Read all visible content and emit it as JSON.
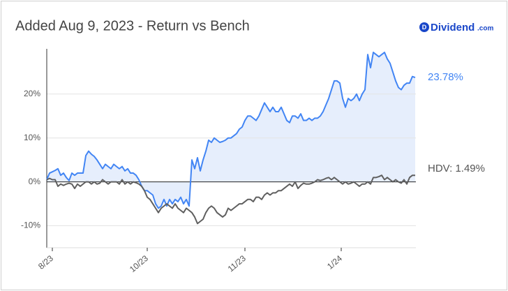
{
  "chart_data": {
    "type": "line",
    "title": "Added Aug 9, 2023 - Return vs Bench",
    "logo_name": "Dividend",
    "logo_suffix": ".com",
    "xlim": [
      0,
      132
    ],
    "xticks": [
      {
        "value": 2,
        "label": "8/23"
      },
      {
        "value": 36,
        "label": "10/23"
      },
      {
        "value": 71,
        "label": "11/23"
      },
      {
        "value": 105.5,
        "label": "1/24"
      }
    ],
    "ylim": [
      -15,
      30.3
    ],
    "yticks": [
      {
        "value": -10,
        "label": "-10%"
      },
      {
        "value": 0,
        "label": "0%"
      },
      {
        "value": 10,
        "label": "10%"
      },
      {
        "value": 20,
        "label": "20%"
      }
    ],
    "grid": true,
    "x": [
      0,
      1,
      2,
      3,
      4,
      5,
      6,
      7,
      8,
      9,
      10,
      11,
      12,
      13,
      14,
      15,
      16,
      17,
      18,
      19,
      20,
      21,
      22,
      23,
      24,
      25,
      26,
      27,
      28,
      29,
      30,
      31,
      32,
      33,
      34,
      35,
      36,
      37,
      38,
      39,
      40,
      41,
      42,
      43,
      44,
      45,
      46,
      47,
      48,
      49,
      50,
      51,
      52,
      53,
      54,
      55,
      56,
      57,
      58,
      59,
      60,
      61,
      62,
      63,
      64,
      65,
      66,
      67,
      68,
      69,
      70,
      71,
      72,
      73,
      74,
      75,
      76,
      77,
      78,
      79,
      80,
      81,
      82,
      83,
      84,
      85,
      86,
      87,
      88,
      89,
      90,
      91,
      92,
      93,
      94,
      95,
      96,
      97,
      98,
      99,
      100,
      101,
      102,
      103,
      104,
      105,
      106,
      107,
      108,
      109,
      110,
      111,
      112,
      113,
      114,
      115,
      116,
      117,
      118,
      119,
      120,
      121,
      122,
      123,
      124,
      125,
      126,
      127,
      128,
      129,
      130,
      131,
      132
    ],
    "series": [
      {
        "label": "23.78%",
        "color": "#4285f4",
        "fill": "#e6eefc",
        "values": [
          0.5,
          2,
          2.3,
          2.6,
          3,
          1.5,
          2,
          1,
          0.3,
          2,
          1.5,
          2,
          2,
          2,
          6,
          7,
          6.3,
          5.8,
          5,
          4,
          3,
          4,
          3.5,
          3,
          4,
          3.5,
          3,
          3.5,
          2.5,
          3,
          2,
          2,
          1.5,
          0.5,
          -1,
          -2,
          -2,
          -2.5,
          -3,
          -5,
          -6,
          -5.5,
          -4,
          -5.5,
          -4,
          -5,
          -4,
          -4.5,
          -3.5,
          -5,
          -4,
          -5.5,
          5,
          3,
          5.5,
          2.5,
          5,
          7,
          9.5,
          9,
          10,
          9.5,
          9,
          9.2,
          9.5,
          10,
          10,
          10.5,
          11,
          12,
          12.5,
          14,
          15,
          15,
          14.5,
          14,
          15,
          16.5,
          18,
          17,
          16,
          17,
          16,
          16,
          17,
          15.5,
          14,
          13.5,
          15,
          15,
          14.5,
          15.5,
          14,
          14,
          14.5,
          14,
          14.5,
          14.5,
          15,
          16,
          17.5,
          19,
          21,
          23,
          23,
          22.5,
          19,
          17,
          19,
          18.5,
          19,
          20,
          18.5,
          20,
          21,
          29,
          26,
          29.5,
          29,
          28.5,
          29,
          29.5,
          28,
          27,
          25,
          23,
          21.5,
          21,
          22,
          22.5,
          22.5,
          24,
          23.78
        ]
      },
      {
        "label": "HDV: 1.49%",
        "color": "#5f5f5f",
        "values": [
          0.5,
          0.8,
          0.5,
          0.5,
          -1,
          -0.5,
          -0.8,
          -0.5,
          -0.3,
          -0.5,
          -1.5,
          -0.5,
          -1,
          -0.5,
          0,
          0,
          -0.5,
          0,
          -0.5,
          -0.3,
          0.5,
          0,
          -0.5,
          0,
          0,
          0,
          -0.5,
          0.5,
          -0.5,
          0,
          -0.5,
          0,
          -0.2,
          -0.5,
          -1,
          -2,
          -3.5,
          -4,
          -5,
          -6,
          -7,
          -6,
          -5.5,
          -5,
          -5.5,
          -6,
          -5,
          -6,
          -6.5,
          -7,
          -6,
          -6.5,
          -7,
          -8,
          -9.5,
          -9,
          -8.5,
          -7,
          -6,
          -5.5,
          -6,
          -7,
          -7.5,
          -8,
          -7.5,
          -6,
          -6.5,
          -6,
          -5.5,
          -5,
          -5,
          -4.5,
          -4,
          -4,
          -4.5,
          -3.5,
          -3.5,
          -4,
          -3,
          -2.5,
          -3,
          -2.5,
          -2.5,
          -2,
          -2,
          -1.5,
          -1,
          -0.5,
          -1,
          0,
          -1.5,
          -0.8,
          -0.3,
          -0.5,
          -0.5,
          -0.3,
          0,
          0.5,
          0.3,
          0.5,
          0.8,
          1,
          0.5,
          1,
          0.5,
          0,
          -0.5,
          0,
          -0.5,
          -0.3,
          0,
          -0.5,
          -1,
          -0.5,
          -0.5,
          0,
          -0.5,
          1,
          1,
          1.2,
          1.5,
          0.5,
          1,
          0.5,
          0,
          0.5,
          0,
          -0.3,
          0.5,
          -0.5,
          1,
          1.5,
          1.49
        ]
      }
    ]
  }
}
